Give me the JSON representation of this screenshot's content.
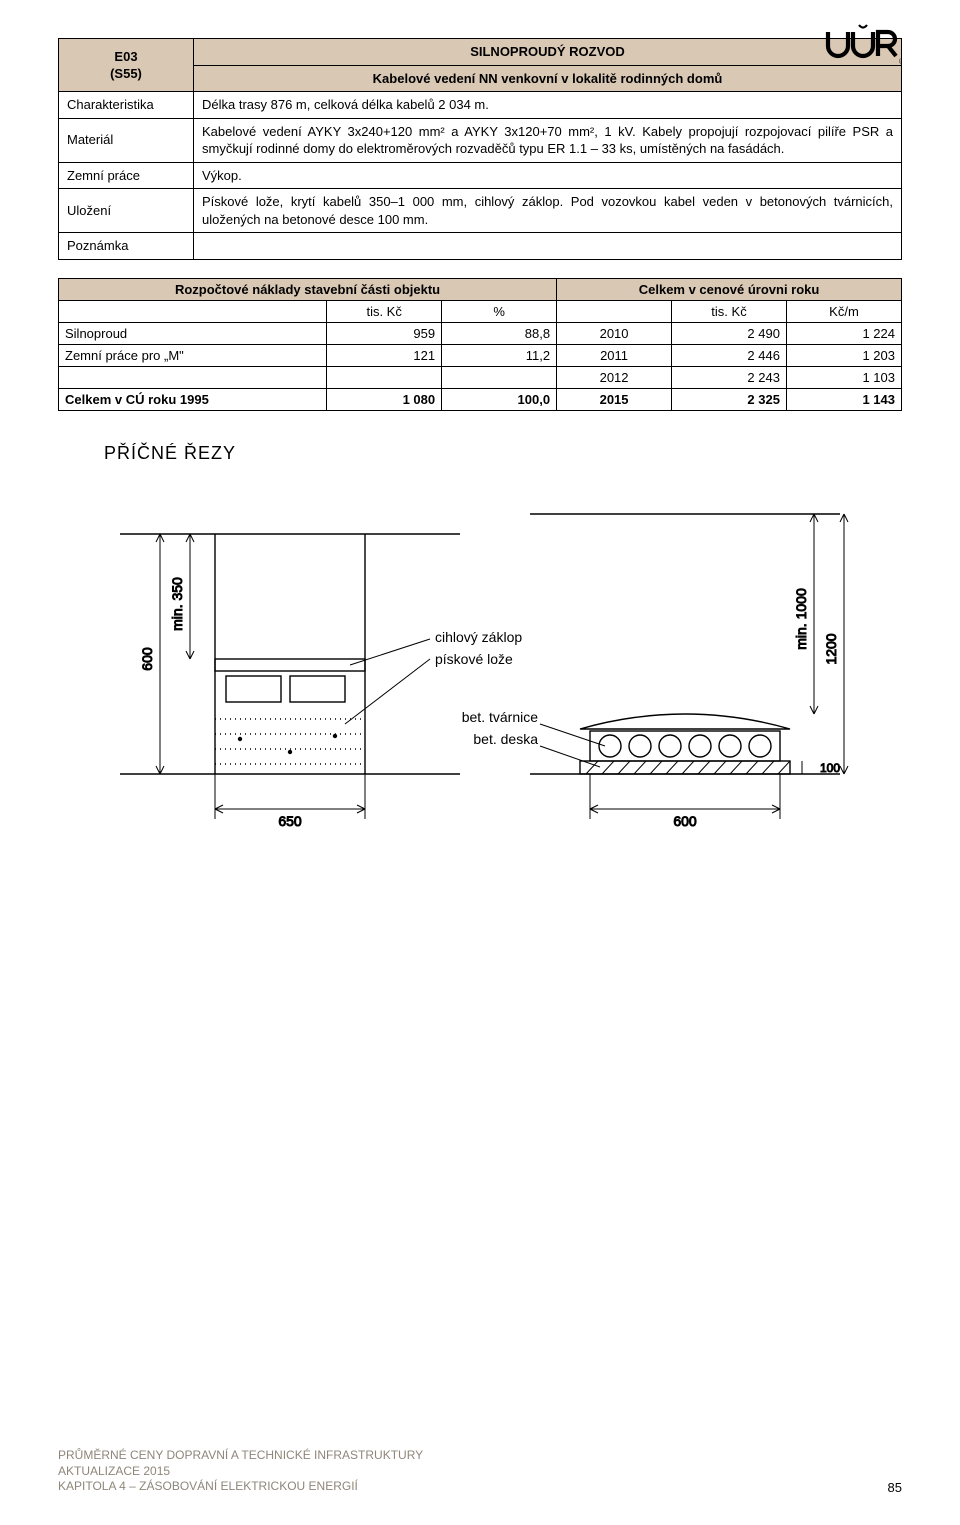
{
  "logo": {
    "text": "UUR",
    "registered": "®"
  },
  "spec": {
    "code1": "E03",
    "code2": "(S55)",
    "title1": "SILNOPROUDÝ ROZVOD",
    "title2": "Kabelové vedení NN venkovní v lokalitě rodinných domů",
    "rows": {
      "charakteristika_label": "Charakteristika",
      "charakteristika": "Délka trasy 876 m, celková délka kabelů 2 034 m.",
      "material_label": "Materiál",
      "material": "Kabelové vedení AYKY 3x240+120 mm² a AYKY 3x120+70 mm², 1 kV. Kabely propojují rozpojovací pilíře PSR a smyčkují rodinné domy do elektroměrových rozvaděčů typu ER 1.1 – 33 ks, umístěných na fasádách.",
      "zemni_label": "Zemní práce",
      "zemni": "Výkop.",
      "ulozeni_label": "Uložení",
      "ulozeni": "Pískové lože, krytí kabelů 350–1 000 mm, cihlový záklop. Pod vozovkou kabel veden v betonových tvárnicích, uložených na betonové desce 100 mm.",
      "poznamka_label": "Poznámka",
      "poznamka": ""
    }
  },
  "cost": {
    "left_header": "Rozpočtové náklady stavební části objektu",
    "right_header": "Celkem v cenové úrovni roku",
    "sub": {
      "tiskc": "tis. Kč",
      "pct": "%",
      "tiskc2": "tis. Kč",
      "kcm": "Kč/m"
    },
    "rows": [
      {
        "name": "Silnoproud",
        "v1": "959",
        "v2": "88,8",
        "year": "2010",
        "v3": "2 490",
        "v4": "1 224"
      },
      {
        "name": "Zemní práce pro „M\"",
        "v1": "121",
        "v2": "11,2",
        "year": "2011",
        "v3": "2 446",
        "v4": "1 203"
      },
      {
        "name": "",
        "v1": "",
        "v2": "",
        "year": "2012",
        "v3": "2 243",
        "v4": "1 103"
      },
      {
        "name": "Celkem v CÚ roku 1995",
        "v1": "1 080",
        "v2": "100,0",
        "year": "2015",
        "v3": "2 325",
        "v4": "1 143",
        "bold": true
      }
    ]
  },
  "diagram": {
    "title": "PŘÍČNÉ ŘEZY",
    "dims": {
      "w_left": "650",
      "w_right": "600",
      "min350": "min. 350",
      "h600": "600",
      "min1000": "min. 1000",
      "h1200": "1200",
      "h100": "100"
    },
    "labels": {
      "cihlovy": "cihlový záklop",
      "piskove": "pískové lože",
      "tvarnice": "bet. tvárnice",
      "deska": "bet. deska"
    }
  },
  "footer": {
    "l1": "PRŮMĚRNÉ CENY DOPRAVNÍ A TECHNICKÉ INFRASTRUKTURY",
    "l2": "AKTUALIZACE 2015",
    "l3": "KAPITOLA 4 – ZÁSOBOVÁNÍ ELEKTRICKOU ENERGIÍ",
    "page": "85"
  },
  "colors": {
    "header_bg": "#d9c8b4",
    "footer_text": "#8f867a"
  }
}
